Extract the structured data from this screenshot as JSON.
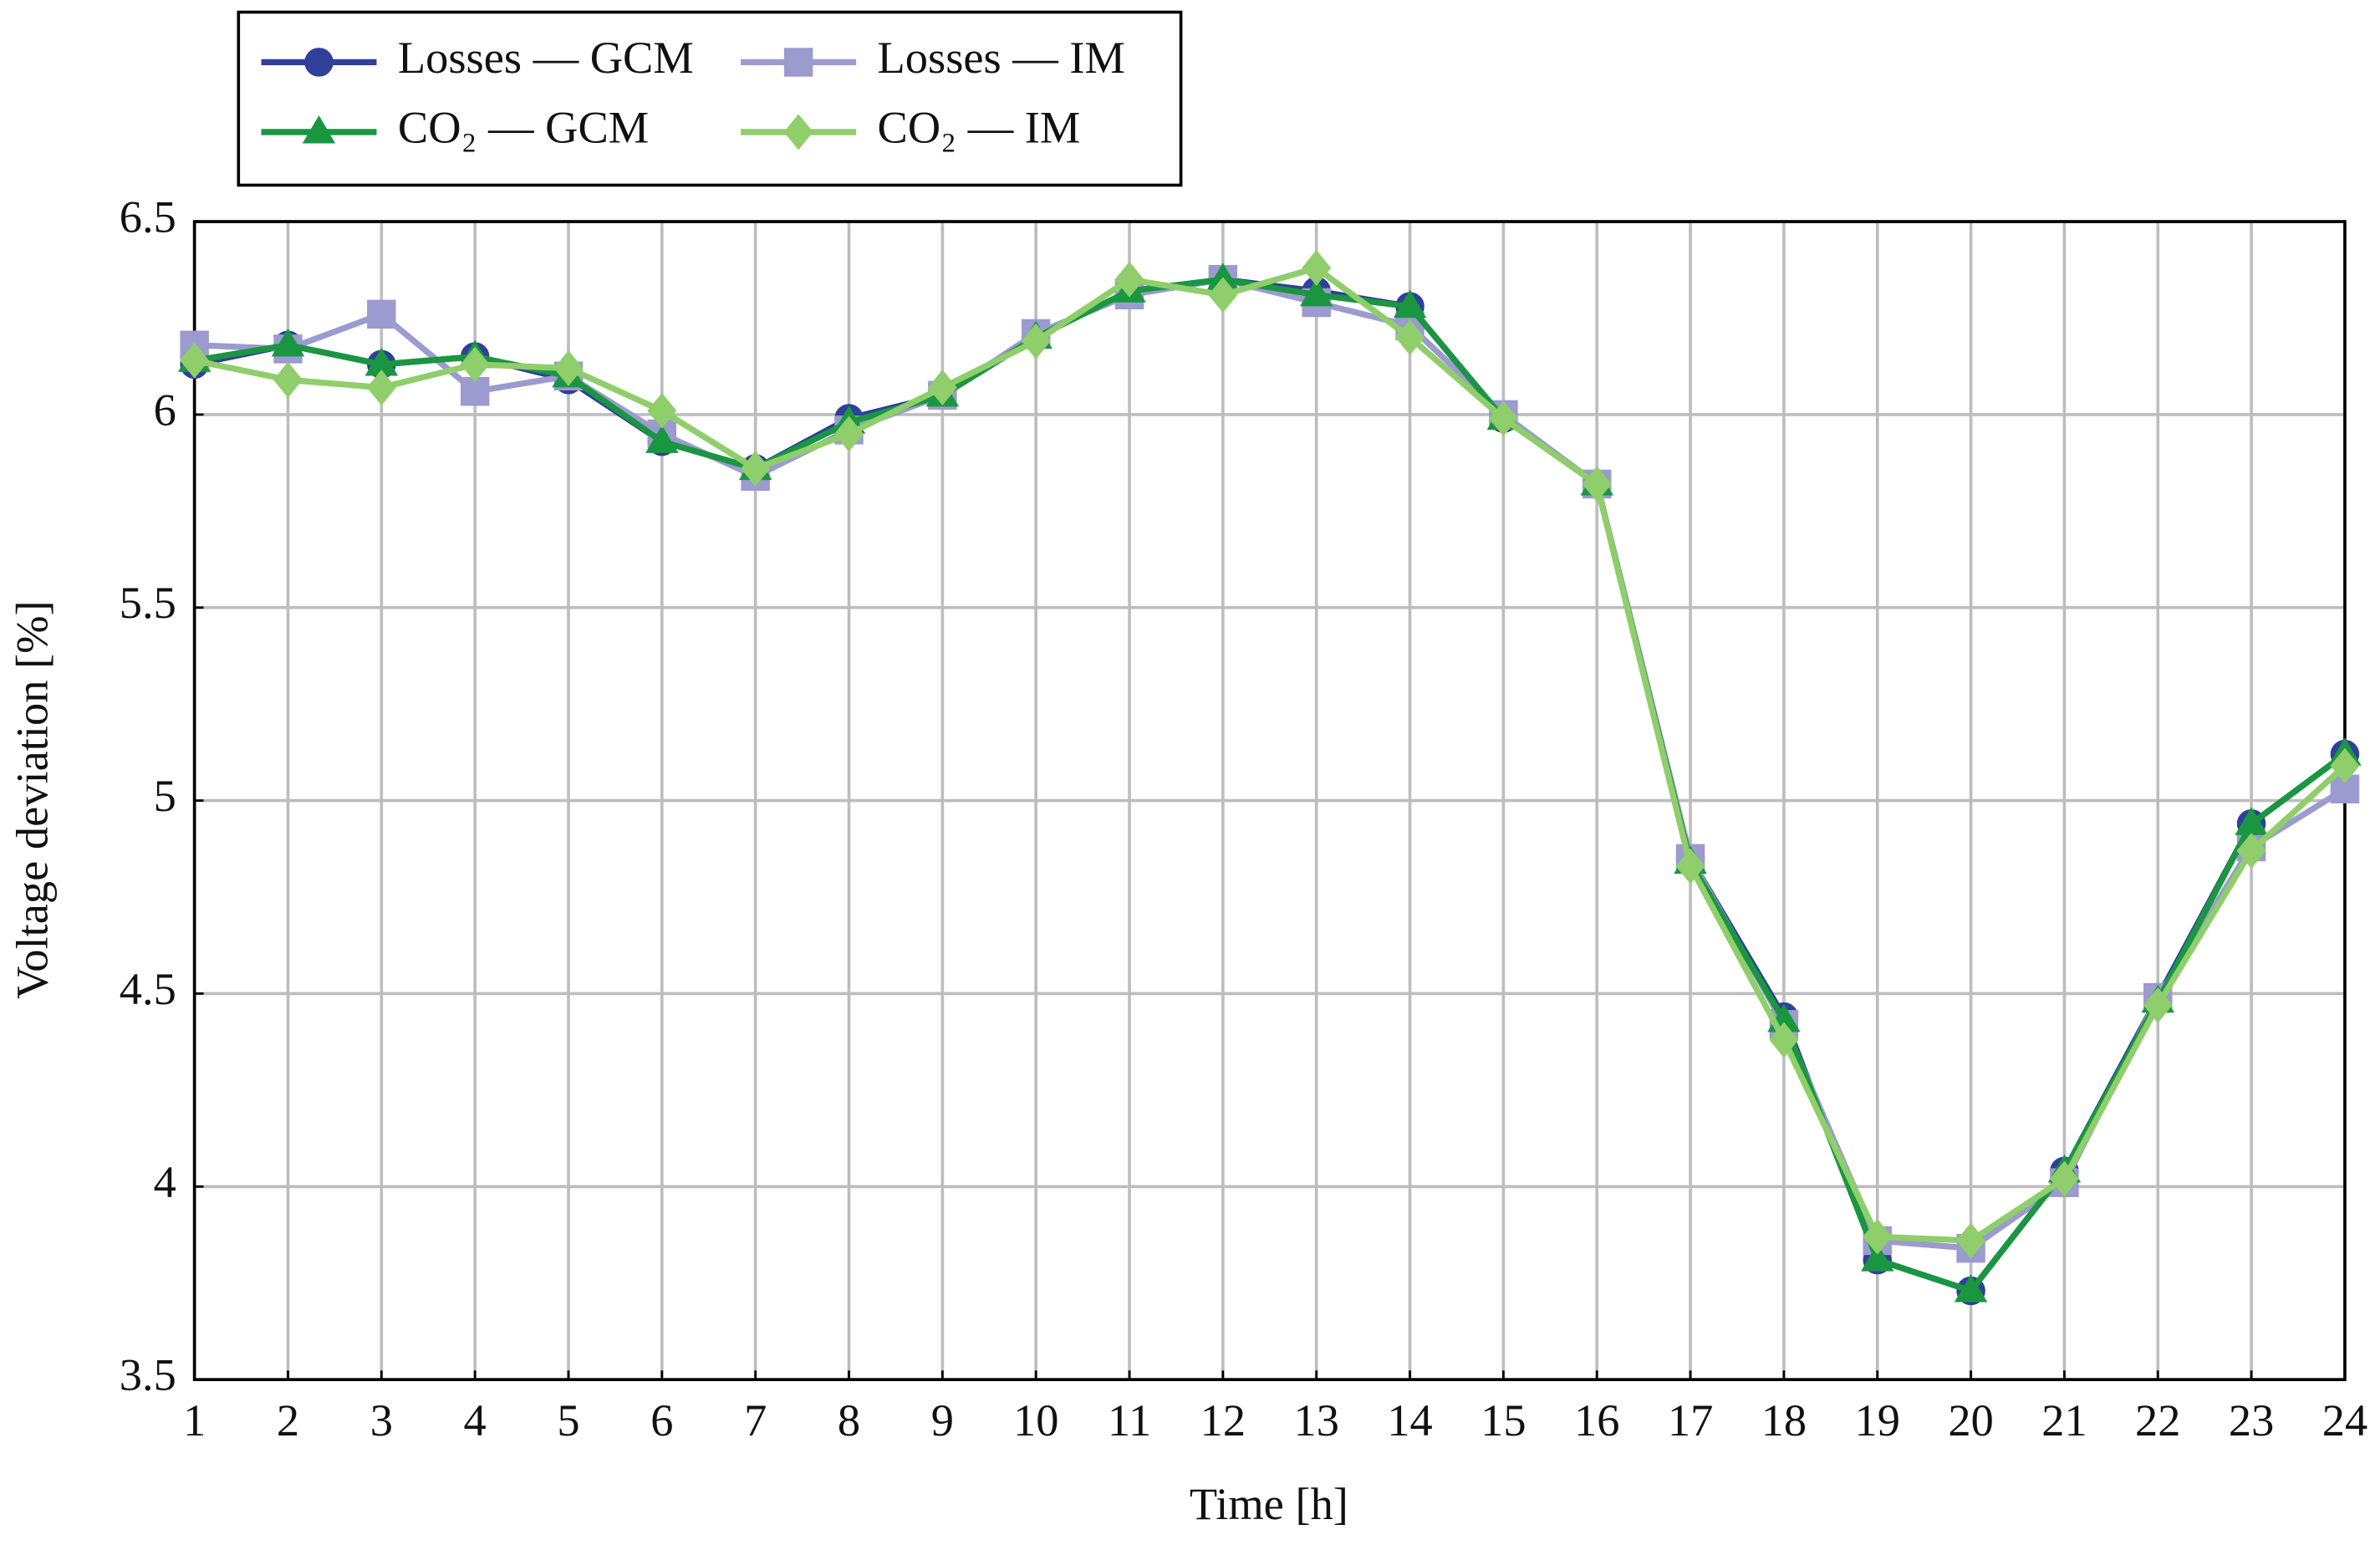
{
  "chart_data": {
    "type": "line",
    "x_label": "Time [h]",
    "y_label": "Voltage deviation [%]",
    "x": [
      1,
      2,
      3,
      4,
      5,
      6,
      7,
      8,
      9,
      10,
      11,
      12,
      13,
      14,
      15,
      16,
      17,
      18,
      19,
      20,
      21,
      22,
      23,
      24
    ],
    "xlim": [
      1,
      24
    ],
    "xticks": [
      1,
      2,
      3,
      4,
      5,
      6,
      7,
      8,
      9,
      10,
      11,
      12,
      13,
      14,
      15,
      16,
      17,
      18,
      19,
      20,
      21,
      22,
      23,
      24
    ],
    "ylim": [
      3.5,
      6.5
    ],
    "yticks": [
      3.5,
      4,
      4.5,
      5,
      5.5,
      6,
      6.5
    ],
    "grid": true,
    "legend": "top-left",
    "series": [
      {
        "name": "Losses — GCM",
        "color": "#2f3f9a",
        "marker": "circle",
        "values": [
          6.13,
          6.18,
          6.13,
          6.15,
          6.09,
          5.93,
          5.86,
          5.99,
          6.05,
          6.2,
          6.32,
          6.35,
          6.32,
          6.28,
          5.99,
          5.82,
          4.85,
          4.44,
          3.81,
          3.73,
          4.04,
          4.49,
          4.94,
          5.12
        ]
      },
      {
        "name": "Losses — IM",
        "color": "#9b9bd0",
        "marker": "square",
        "values": [
          6.18,
          6.17,
          6.26,
          6.06,
          6.1,
          5.95,
          5.84,
          5.96,
          6.05,
          6.21,
          6.31,
          6.35,
          6.29,
          6.23,
          6.0,
          5.82,
          4.85,
          4.42,
          3.86,
          3.84,
          4.01,
          4.49,
          4.88,
          5.03
        ]
      },
      {
        "name": "CO₂ — GCM",
        "color": "#1a9641",
        "marker": "triangle",
        "values": [
          6.14,
          6.18,
          6.13,
          6.15,
          6.1,
          5.93,
          5.86,
          5.98,
          6.05,
          6.2,
          6.32,
          6.35,
          6.31,
          6.28,
          5.99,
          5.82,
          4.84,
          4.43,
          3.81,
          3.73,
          4.04,
          4.48,
          4.94,
          5.12
        ]
      },
      {
        "name": "CO₂ — IM",
        "color": "#8fce6a",
        "marker": "diamond",
        "values": [
          6.14,
          6.09,
          6.07,
          6.13,
          6.12,
          6.01,
          5.86,
          5.95,
          6.07,
          6.19,
          6.35,
          6.31,
          6.38,
          6.2,
          5.99,
          5.82,
          4.83,
          4.38,
          3.87,
          3.86,
          4.02,
          4.47,
          4.87,
          5.09
        ]
      }
    ]
  }
}
